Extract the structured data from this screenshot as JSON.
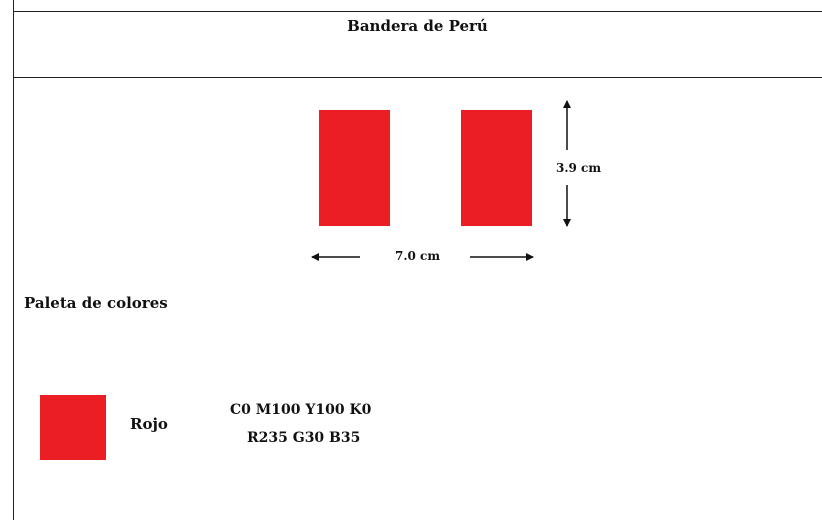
{
  "document": {
    "title": "Bandera de Perú"
  },
  "flag": {
    "stripe_color": "#EB1E23",
    "stripe_count": 2,
    "height_label": "3.9 cm",
    "width_label": "7.0 cm"
  },
  "palette": {
    "title": "Paleta de colores",
    "colors": [
      {
        "name": "Rojo",
        "cmyk": "C0  M100  Y100  K0",
        "rgb": "R235  G30  B35",
        "hex": "#EB1E23"
      }
    ]
  }
}
